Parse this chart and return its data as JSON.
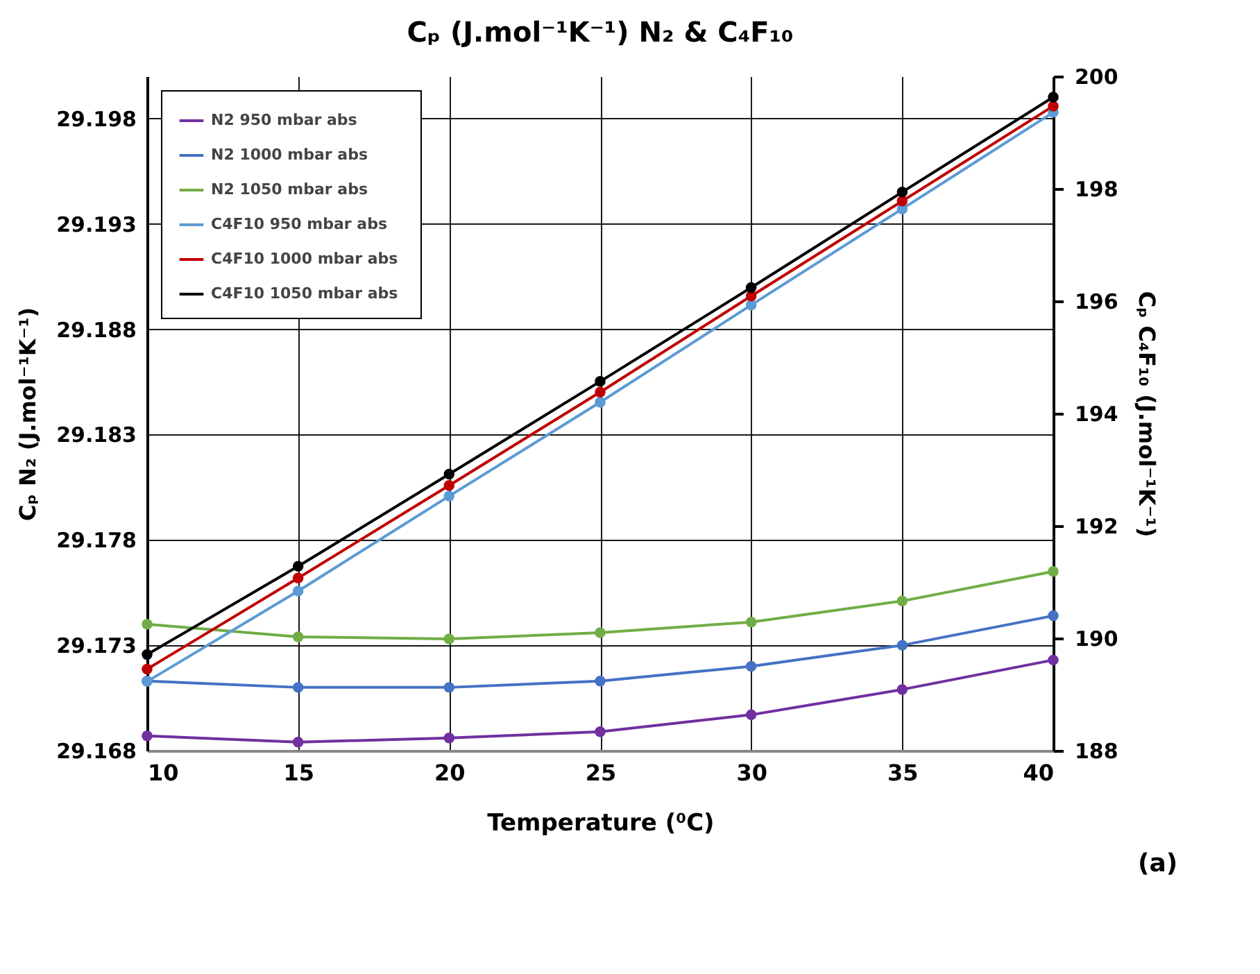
{
  "chart_data": {
    "type": "line",
    "title": "Cₚ (J.mol⁻¹K⁻¹) N₂ & C₄F₁₀",
    "xlabel": "Temperature (⁰C)",
    "ylabel": "Cₚ N₂ (J.mol⁻¹K⁻¹)",
    "y2label": "Cₚ C₄F₁₀ (J.mol⁻¹K⁻¹)",
    "annotations": [
      "(a)"
    ],
    "x": [
      10,
      15,
      20,
      25,
      30,
      35,
      40
    ],
    "xlim": [
      10,
      40
    ],
    "xticks": [
      10,
      15,
      20,
      25,
      30,
      35,
      40
    ],
    "ylim": [
      29.168,
      29.2
    ],
    "yticks": [
      29.168,
      29.173,
      29.178,
      29.183,
      29.188,
      29.193,
      29.198
    ],
    "y2lim": [
      188,
      200
    ],
    "y2ticks": [
      188,
      190,
      192,
      194,
      196,
      198,
      200
    ],
    "grid": true,
    "legend": "top left",
    "marker": "circle",
    "line_style": "solid",
    "series": [
      {
        "name": "N2 950 mbar abs",
        "color": "#7030a0",
        "values": [
          29.1687,
          29.1684,
          29.1686,
          29.1689,
          29.1697,
          29.1709,
          29.1723
        ]
      },
      {
        "name": "N2 1000 mbar abs",
        "color": "#4472c4",
        "values": [
          29.1713,
          29.171,
          29.171,
          29.1713,
          29.172,
          29.173,
          29.1744
        ]
      },
      {
        "name": "N2 1050 mbar abs",
        "color": "#70ad47",
        "values": [
          29.174,
          29.1734,
          29.1733,
          29.1736,
          29.1741,
          29.1751,
          29.1765
        ]
      },
      {
        "name": "C4F10  950 mbar abs",
        "color": "#5b9bd5",
        "axis": "y2",
        "values": [
          189.23,
          190.84,
          192.53,
          194.2,
          195.93,
          197.64,
          199.36
        ]
      },
      {
        "name": "C4F10  1000 mbar abs",
        "color": "#c00000",
        "axis": "y2",
        "values": [
          189.45,
          191.07,
          192.72,
          194.38,
          196.09,
          197.78,
          199.47
        ]
      },
      {
        "name": "C4F10  1050 mbar abs",
        "color": "#000000",
        "axis": "y2",
        "values": [
          189.71,
          191.28,
          192.92,
          194.57,
          196.24,
          197.94,
          199.63
        ]
      }
    ]
  }
}
